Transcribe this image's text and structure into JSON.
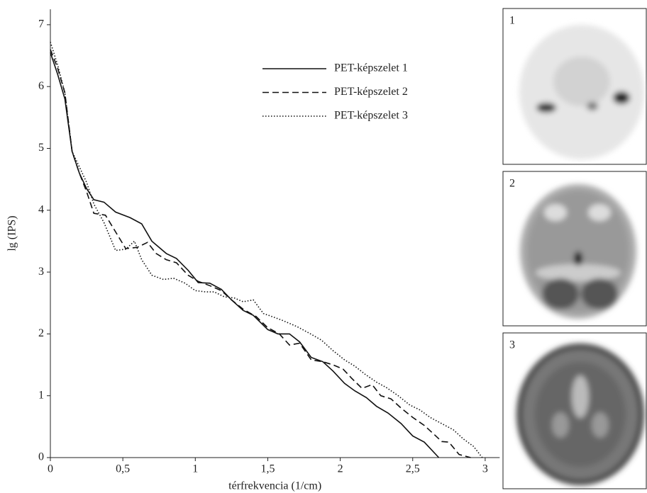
{
  "chart_data": {
    "type": "line",
    "xlabel": "térfrekvencia (1/cm)",
    "ylabel": "lg (IPS)",
    "xlim": [
      0,
      3.1
    ],
    "ylim": [
      0,
      7.25
    ],
    "xticks": [
      0,
      {
        "value": 0.5,
        "label": "0,5"
      },
      1,
      {
        "value": 1.5,
        "label": "1,5"
      },
      2,
      {
        "value": 2.5,
        "label": "2,5"
      },
      3
    ],
    "yticks": [
      0,
      1,
      2,
      3,
      4,
      5,
      6,
      7
    ],
    "series": [
      {
        "name": "PET-képszelet 1",
        "color": "#111111",
        "dash": "solid",
        "x": [
          0,
          0.05,
          0.1,
          0.15,
          0.2,
          0.25,
          0.3,
          0.37,
          0.45,
          0.55,
          0.63,
          0.7,
          0.8,
          0.87,
          0.95,
          1.02,
          1.1,
          1.18,
          1.25,
          1.33,
          1.4,
          1.5,
          1.57,
          1.65,
          1.72,
          1.8,
          1.88,
          1.95,
          2.03,
          2.1,
          2.18,
          2.25,
          2.33,
          2.42,
          2.5,
          2.58,
          2.68
        ],
        "values": [
          6.55,
          6.2,
          5.8,
          4.95,
          4.6,
          4.35,
          4.17,
          4.13,
          3.97,
          3.88,
          3.78,
          3.5,
          3.3,
          3.22,
          3.03,
          2.83,
          2.82,
          2.72,
          2.55,
          2.38,
          2.3,
          2.07,
          2.0,
          2.0,
          1.87,
          1.62,
          1.55,
          1.4,
          1.2,
          1.08,
          0.97,
          0.83,
          0.72,
          0.55,
          0.35,
          0.25,
          0
        ]
      },
      {
        "name": "PET-képszelet 2",
        "color": "#111111",
        "dash": "dashed",
        "x": [
          0,
          0.05,
          0.1,
          0.15,
          0.2,
          0.25,
          0.3,
          0.38,
          0.45,
          0.52,
          0.6,
          0.67,
          0.73,
          0.8,
          0.87,
          0.95,
          1.02,
          1.1,
          1.18,
          1.25,
          1.33,
          1.42,
          1.5,
          1.58,
          1.65,
          1.72,
          1.8,
          1.88,
          1.95,
          2.02,
          2.08,
          2.15,
          2.22,
          2.28,
          2.35,
          2.42,
          2.5,
          2.58,
          2.65,
          2.7,
          2.75,
          2.82,
          2.9
        ],
        "values": [
          6.6,
          6.3,
          5.9,
          4.95,
          4.6,
          4.3,
          3.95,
          3.92,
          3.65,
          3.38,
          3.4,
          3.48,
          3.3,
          3.2,
          3.15,
          2.95,
          2.85,
          2.78,
          2.7,
          2.55,
          2.4,
          2.28,
          2.1,
          2.0,
          1.82,
          1.85,
          1.58,
          1.55,
          1.5,
          1.43,
          1.28,
          1.12,
          1.18,
          1.0,
          0.95,
          0.8,
          0.65,
          0.52,
          0.37,
          0.26,
          0.25,
          0.05,
          0
        ]
      },
      {
        "name": "PET-képszelet 3",
        "color": "#111111",
        "dash": "dotted",
        "x": [
          0,
          0.05,
          0.1,
          0.15,
          0.2,
          0.25,
          0.3,
          0.37,
          0.45,
          0.52,
          0.58,
          0.63,
          0.7,
          0.78,
          0.85,
          0.93,
          1.0,
          1.07,
          1.13,
          1.2,
          1.27,
          1.33,
          1.4,
          1.47,
          1.53,
          1.6,
          1.7,
          1.78,
          1.87,
          1.95,
          2.03,
          2.1,
          2.17,
          2.25,
          2.32,
          2.4,
          2.48,
          2.55,
          2.62,
          2.7,
          2.78,
          2.85,
          2.92,
          2.98
        ],
        "values": [
          6.72,
          6.35,
          5.9,
          4.95,
          4.7,
          4.45,
          4.1,
          3.8,
          3.35,
          3.37,
          3.5,
          3.2,
          2.95,
          2.88,
          2.9,
          2.82,
          2.7,
          2.68,
          2.68,
          2.6,
          2.58,
          2.52,
          2.55,
          2.33,
          2.28,
          2.22,
          2.12,
          2.02,
          1.9,
          1.73,
          1.58,
          1.48,
          1.35,
          1.22,
          1.13,
          1.0,
          0.85,
          0.77,
          0.65,
          0.55,
          0.45,
          0.3,
          0.18,
          0
        ]
      }
    ]
  },
  "panels": [
    {
      "label": "1"
    },
    {
      "label": "2"
    },
    {
      "label": "3"
    }
  ]
}
